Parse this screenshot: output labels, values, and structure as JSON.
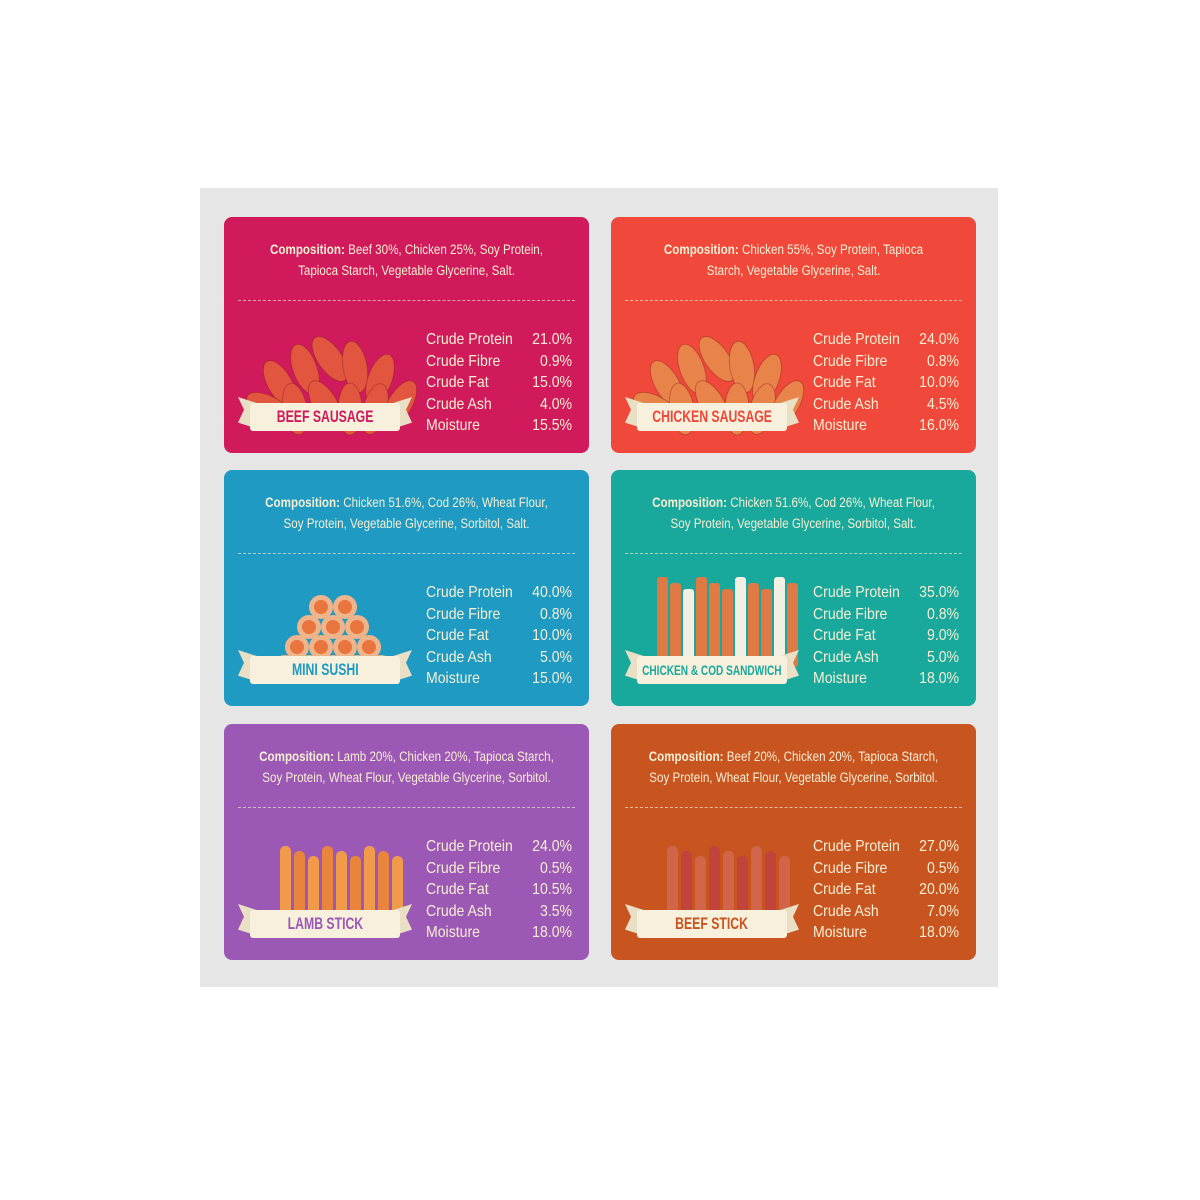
{
  "composition_label": "Composition:",
  "nutrient_labels": [
    "Crude Protein",
    "Crude Fibre",
    "Crude Fat",
    "Crude Ash",
    "Moisture"
  ],
  "products": [
    {
      "name": "BEEF SAUSAGE",
      "color": "#d01a5b",
      "composition": "Beef 30%, Chicken 25%, Soy Protein, Tapioca Starch, Vegetable Glycerine, Salt.",
      "values": [
        "21.0%",
        "0.9%",
        "15.0%",
        "4.0%",
        "15.5%"
      ],
      "icon": "sausage-pile"
    },
    {
      "name": "CHICKEN SAUSAGE",
      "color": "#f0483a",
      "composition": "Chicken 55%, Soy Protein, Tapioca Starch, Vegetable Glycerine, Salt.",
      "values": [
        "24.0%",
        "0.8%",
        "10.0%",
        "4.5%",
        "16.0%"
      ],
      "icon": "sausage-pile"
    },
    {
      "name": "MINI SUSHI",
      "color": "#1f9ac3",
      "composition": "Chicken 51.6%, Cod 26%, Wheat Flour, Soy Protein, Vegetable Glycerine, Sorbitol, Salt.",
      "values": [
        "40.0%",
        "0.8%",
        "10.0%",
        "5.0%",
        "15.0%"
      ],
      "icon": "sushi-pile"
    },
    {
      "name": "CHICKEN & COD SANDWICH",
      "color": "#19a89c",
      "composition": "Chicken 51.6%, Cod 26%, Wheat Flour, Soy Protein, Vegetable Glycerine, Sorbitol, Salt.",
      "values": [
        "35.0%",
        "0.8%",
        "9.0%",
        "5.0%",
        "18.0%"
      ],
      "icon": "strips"
    },
    {
      "name": "LAMB STICK",
      "color": "#9c58b5",
      "composition": "Lamb 20%, Chicken 20%, Tapioca Starch, Soy Protein, Wheat Flour, Vegetable Glycerine, Sorbitol.",
      "values": [
        "24.0%",
        "0.5%",
        "10.5%",
        "3.5%",
        "18.0%"
      ],
      "icon": "sticks"
    },
    {
      "name": "BEEF STICK",
      "color": "#c8541f",
      "composition": "Beef 20%, Chicken 20%, Tapioca Starch, Soy Protein, Wheat Flour, Vegetable Glycerine, Sorbitol.",
      "values": [
        "27.0%",
        "0.5%",
        "20.0%",
        "7.0%",
        "18.0%"
      ],
      "icon": "sticks"
    }
  ]
}
